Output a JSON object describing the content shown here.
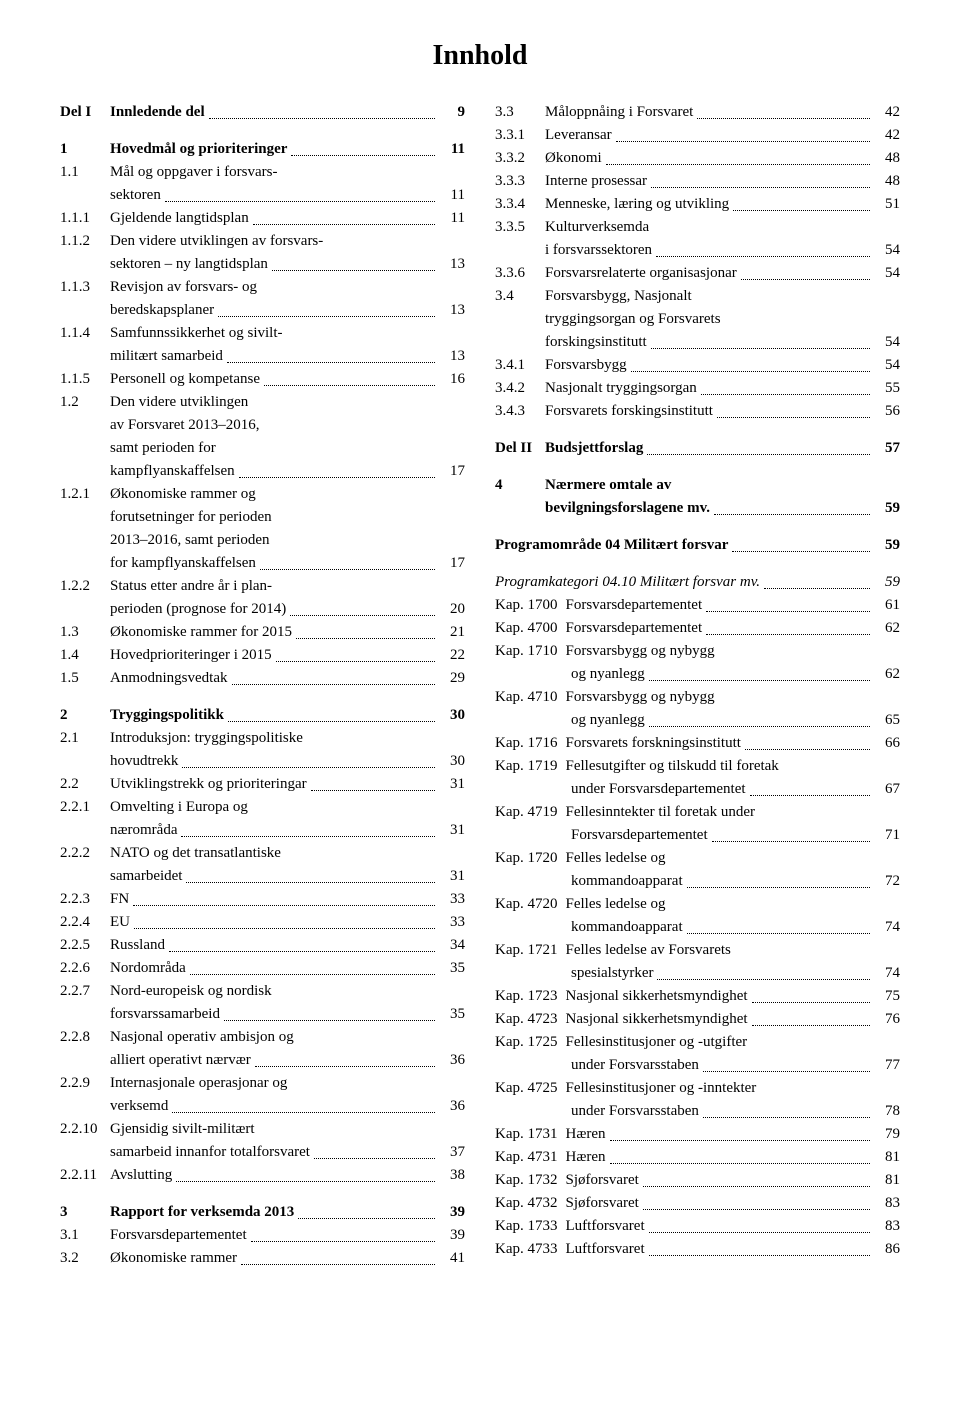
{
  "title": "Innhold",
  "left": [
    {
      "type": "row",
      "num": "Del I",
      "bold": true,
      "txt": "Innledende del",
      "page": "9"
    },
    {
      "type": "spacer"
    },
    {
      "type": "row",
      "num": "1",
      "bold": true,
      "txt": "Hovedmål og prioriteringer",
      "page": "11"
    },
    {
      "type": "row",
      "num": "1.1",
      "txt": "Mål og oppgaver i forsvars-",
      "nopage": true
    },
    {
      "type": "row",
      "num": "",
      "txt": "sektoren",
      "page": "11"
    },
    {
      "type": "row",
      "num": "1.1.1",
      "txt": "Gjeldende langtidsplan",
      "page": "11"
    },
    {
      "type": "row",
      "num": "1.1.2",
      "txt": "Den videre utviklingen av forsvars-",
      "nopage": true
    },
    {
      "type": "row",
      "num": "",
      "txt": "sektoren – ny langtidsplan",
      "page": "13"
    },
    {
      "type": "row",
      "num": "1.1.3",
      "txt": "Revisjon av forsvars- og",
      "nopage": true
    },
    {
      "type": "row",
      "num": "",
      "txt": "beredskapsplaner",
      "page": "13"
    },
    {
      "type": "row",
      "num": "1.1.4",
      "txt": "Samfunnssikkerhet og sivilt-",
      "nopage": true
    },
    {
      "type": "row",
      "num": "",
      "txt": "militært samarbeid",
      "page": "13"
    },
    {
      "type": "row",
      "num": "1.1.5",
      "txt": "Personell og kompetanse",
      "page": "16"
    },
    {
      "type": "row",
      "num": "1.2",
      "txt": "Den videre utviklingen",
      "nopage": true
    },
    {
      "type": "row",
      "num": "",
      "txt": "av Forsvaret 2013–2016,",
      "nopage": true
    },
    {
      "type": "row",
      "num": "",
      "txt": "samt perioden for",
      "nopage": true
    },
    {
      "type": "row",
      "num": "",
      "txt": "kampflyanskaffelsen",
      "page": "17"
    },
    {
      "type": "row",
      "num": "1.2.1",
      "txt": "Økonomiske rammer og",
      "nopage": true
    },
    {
      "type": "row",
      "num": "",
      "txt": "forutsetninger for perioden",
      "nopage": true
    },
    {
      "type": "row",
      "num": "",
      "txt": "2013–2016, samt perioden",
      "nopage": true
    },
    {
      "type": "row",
      "num": "",
      "txt": "for kampflyanskaffelsen",
      "page": "17"
    },
    {
      "type": "row",
      "num": "1.2.2",
      "txt": "Status etter andre år i plan-",
      "nopage": true
    },
    {
      "type": "row",
      "num": "",
      "txt": "perioden (prognose for 2014)",
      "page": "20"
    },
    {
      "type": "row",
      "num": "1.3",
      "txt": "Økonomiske rammer for 2015",
      "page": "21"
    },
    {
      "type": "row",
      "num": "1.4",
      "txt": "Hovedprioriteringer i 2015",
      "page": "22"
    },
    {
      "type": "row",
      "num": "1.5",
      "txt": "Anmodningsvedtak",
      "page": "29"
    },
    {
      "type": "spacer"
    },
    {
      "type": "row",
      "num": "2",
      "bold": true,
      "txt": "Tryggingspolitikk",
      "page": "30"
    },
    {
      "type": "row",
      "num": "2.1",
      "txt": "Introduksjon: tryggingspolitiske",
      "nopage": true
    },
    {
      "type": "row",
      "num": "",
      "txt": "hovudtrekk",
      "page": "30"
    },
    {
      "type": "row",
      "num": "2.2",
      "txt": "Utviklingstrekk og prioriteringar",
      "page": "31"
    },
    {
      "type": "row",
      "num": "2.2.1",
      "txt": "Omvelting i Europa og",
      "nopage": true
    },
    {
      "type": "row",
      "num": "",
      "txt": "nærområda",
      "page": "31"
    },
    {
      "type": "row",
      "num": "2.2.2",
      "txt": "NATO og det transatlantiske",
      "nopage": true
    },
    {
      "type": "row",
      "num": "",
      "txt": "samarbeidet",
      "page": "31"
    },
    {
      "type": "row",
      "num": "2.2.3",
      "txt": "FN",
      "page": "33"
    },
    {
      "type": "row",
      "num": "2.2.4",
      "txt": "EU",
      "page": "33"
    },
    {
      "type": "row",
      "num": "2.2.5",
      "txt": "Russland",
      "page": "34"
    },
    {
      "type": "row",
      "num": "2.2.6",
      "txt": "Nordområda",
      "page": "35"
    },
    {
      "type": "row",
      "num": "2.2.7",
      "txt": "Nord-europeisk og nordisk",
      "nopage": true
    },
    {
      "type": "row",
      "num": "",
      "txt": "forsvarssamarbeid",
      "page": "35"
    },
    {
      "type": "row",
      "num": "2.2.8",
      "txt": "Nasjonal operativ ambisjon og",
      "nopage": true
    },
    {
      "type": "row",
      "num": "",
      "txt": "alliert operativt nærvær",
      "page": "36"
    },
    {
      "type": "row",
      "num": "2.2.9",
      "txt": "Internasjonale operasjonar og",
      "nopage": true
    },
    {
      "type": "row",
      "num": "",
      "txt": "verksemd",
      "page": "36"
    },
    {
      "type": "row",
      "num": "2.2.10",
      "txt": "Gjensidig sivilt-militært",
      "nopage": true
    },
    {
      "type": "row",
      "num": "",
      "txt": "samarbeid innanfor totalforsvaret",
      "page": "37"
    },
    {
      "type": "row",
      "num": "2.2.11",
      "txt": "Avslutting",
      "page": "38"
    },
    {
      "type": "spacer"
    },
    {
      "type": "row",
      "num": "3",
      "bold": true,
      "txt": "Rapport for verksemda 2013",
      "page": "39"
    },
    {
      "type": "row",
      "num": "3.1",
      "txt": "Forsvarsdepartementet",
      "page": "39"
    },
    {
      "type": "row",
      "num": "3.2",
      "txt": "Økonomiske rammer",
      "page": "41"
    }
  ],
  "right": [
    {
      "type": "row",
      "num": "3.3",
      "txt": "Måloppnåing i Forsvaret",
      "page": "42"
    },
    {
      "type": "row",
      "num": "3.3.1",
      "txt": "Leveransar",
      "page": "42"
    },
    {
      "type": "row",
      "num": "3.3.2",
      "txt": "Økonomi",
      "page": "48"
    },
    {
      "type": "row",
      "num": "3.3.3",
      "txt": "Interne prosessar",
      "page": "48"
    },
    {
      "type": "row",
      "num": "3.3.4",
      "txt": "Menneske, læring og utvikling",
      "page": "51"
    },
    {
      "type": "row",
      "num": "3.3.5",
      "txt": "Kulturverksemda",
      "nopage": true
    },
    {
      "type": "row",
      "num": "",
      "txt": "i forsvarssektoren",
      "page": "54"
    },
    {
      "type": "row",
      "num": "3.3.6",
      "txt": "Forsvarsrelaterte organisasjonar",
      "page": "54"
    },
    {
      "type": "row",
      "num": "3.4",
      "txt": "Forsvarsbygg, Nasjonalt",
      "nopage": true
    },
    {
      "type": "row",
      "num": "",
      "txt": "tryggingsorgan og Forsvarets",
      "nopage": true
    },
    {
      "type": "row",
      "num": "",
      "txt": "forskingsinstitutt",
      "page": "54"
    },
    {
      "type": "row",
      "num": "3.4.1",
      "txt": "Forsvarsbygg",
      "page": "54"
    },
    {
      "type": "row",
      "num": "3.4.2",
      "txt": "Nasjonalt tryggingsorgan",
      "page": "55"
    },
    {
      "type": "row",
      "num": "3.4.3",
      "txt": "Forsvarets forskingsinstitutt",
      "page": "56"
    },
    {
      "type": "spacer"
    },
    {
      "type": "row",
      "num": "Del II",
      "bold": true,
      "txt": "Budsjettforslag",
      "page": "57"
    },
    {
      "type": "spacer"
    },
    {
      "type": "row",
      "num": "4",
      "bold": true,
      "txt": "Nærmere omtale av",
      "nopage": true
    },
    {
      "type": "row",
      "num": "",
      "bold": true,
      "txt": "bevilgningsforslagene mv.",
      "page": "59"
    },
    {
      "type": "spacer"
    },
    {
      "type": "fullrow",
      "bold": true,
      "txt": "Programområde 04 Militært forsvar",
      "page": "59"
    },
    {
      "type": "spacer"
    },
    {
      "type": "fullrow",
      "italic": true,
      "txt": "Programkategori 04.10 Militært forsvar mv.",
      "page": "59"
    },
    {
      "type": "kap",
      "num": "Kap. 1700",
      "txt": "Forsvarsdepartementet",
      "page": "61"
    },
    {
      "type": "kap",
      "num": "Kap. 4700",
      "txt": "Forsvarsdepartementet",
      "page": "62"
    },
    {
      "type": "kap",
      "num": "Kap. 1710",
      "txt": "Forsvarsbygg og nybygg",
      "nopage": true
    },
    {
      "type": "kapcont",
      "txt": "og nyanlegg",
      "page": "62"
    },
    {
      "type": "kap",
      "num": "Kap. 4710",
      "txt": "Forsvarsbygg og nybygg",
      "nopage": true
    },
    {
      "type": "kapcont",
      "txt": "og nyanlegg",
      "page": "65"
    },
    {
      "type": "kap",
      "num": "Kap. 1716",
      "txt": "Forsvarets forskningsinstitutt",
      "page": "66"
    },
    {
      "type": "kap",
      "num": "Kap. 1719",
      "txt": "Fellesutgifter og tilskudd til foretak",
      "nopage": true
    },
    {
      "type": "kapcont",
      "txt": "under Forsvarsdepartementet",
      "page": "67"
    },
    {
      "type": "kap",
      "num": "Kap. 4719",
      "txt": "Fellesinntekter til foretak under",
      "nopage": true
    },
    {
      "type": "kapcont",
      "txt": "Forsvarsdepartementet",
      "page": "71"
    },
    {
      "type": "kap",
      "num": "Kap. 1720",
      "txt": "Felles ledelse og",
      "nopage": true
    },
    {
      "type": "kapcont",
      "txt": "kommandoapparat",
      "page": "72"
    },
    {
      "type": "kap",
      "num": "Kap. 4720",
      "txt": "Felles ledelse og",
      "nopage": true
    },
    {
      "type": "kapcont",
      "txt": "kommandoapparat",
      "page": "74"
    },
    {
      "type": "kap",
      "num": "Kap. 1721",
      "txt": "Felles ledelse av Forsvarets",
      "nopage": true
    },
    {
      "type": "kapcont",
      "txt": "spesialstyrker",
      "page": "74"
    },
    {
      "type": "kap",
      "num": "Kap. 1723",
      "txt": "Nasjonal sikkerhetsmyndighet",
      "page": "75"
    },
    {
      "type": "kap",
      "num": "Kap. 4723",
      "txt": "Nasjonal sikkerhetsmyndighet",
      "page": "76"
    },
    {
      "type": "kap",
      "num": "Kap. 1725",
      "txt": "Fellesinstitusjoner og -utgifter",
      "nopage": true
    },
    {
      "type": "kapcont",
      "txt": "under Forsvarsstaben",
      "page": "77"
    },
    {
      "type": "kap",
      "num": "Kap. 4725",
      "txt": "Fellesinstitusjoner og -inntekter",
      "nopage": true
    },
    {
      "type": "kapcont",
      "txt": "under Forsvarsstaben",
      "page": "78"
    },
    {
      "type": "kap",
      "num": "Kap. 1731",
      "txt": "Hæren",
      "page": "79"
    },
    {
      "type": "kap",
      "num": "Kap. 4731",
      "txt": "Hæren",
      "page": "81"
    },
    {
      "type": "kap",
      "num": "Kap. 1732",
      "txt": "Sjøforsvaret",
      "page": "81"
    },
    {
      "type": "kap",
      "num": "Kap. 4732",
      "txt": "Sjøforsvaret",
      "page": "83"
    },
    {
      "type": "kap",
      "num": "Kap. 1733",
      "txt": "Luftforsvaret",
      "page": "83"
    },
    {
      "type": "kap",
      "num": "Kap. 4733",
      "txt": "Luftforsvaret",
      "page": "86"
    }
  ]
}
